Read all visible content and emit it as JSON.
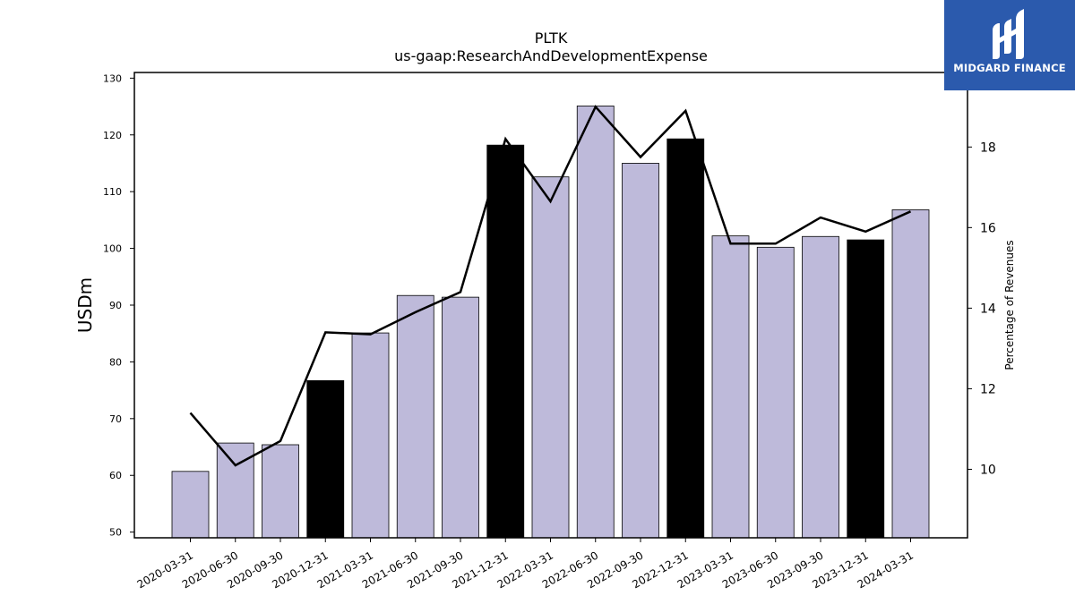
{
  "brand": {
    "name": "MIDGARD FINANCE",
    "background_color": "#2b5aad",
    "icon": "midgard-logo-icon"
  },
  "chart_data": {
    "type": "bar",
    "title": "PLTK",
    "subtitle": "us-gaap:ResearchAndDevelopmentExpense",
    "ylabel": "USDm",
    "y2label": "Percentage of Revenues",
    "ylim": [
      49,
      131
    ],
    "y2lim": [
      8.3,
      19.85
    ],
    "yticks": [
      50,
      60,
      70,
      80,
      90,
      100,
      110,
      120,
      130
    ],
    "y2ticks": [
      10,
      12,
      14,
      16,
      18
    ],
    "categories": [
      "2020-03-31",
      "2020-06-30",
      "2020-09-30",
      "2020-12-31",
      "2021-03-31",
      "2021-06-30",
      "2021-09-30",
      "2021-12-31",
      "2022-03-31",
      "2022-06-30",
      "2022-09-30",
      "2022-12-31",
      "2023-03-31",
      "2023-06-30",
      "2023-09-30",
      "2023-12-31",
      "2024-03-31"
    ],
    "series": [
      {
        "kind": "bar",
        "values": [
          60.7,
          65.7,
          65.4,
          76.7,
          85.1,
          91.7,
          91.4,
          118.2,
          112.6,
          125.1,
          115.0,
          119.3,
          102.2,
          100.2,
          102.1,
          101.5,
          106.8
        ],
        "highlight": [
          false,
          false,
          false,
          true,
          false,
          false,
          false,
          true,
          false,
          false,
          false,
          true,
          false,
          false,
          false,
          true,
          false
        ],
        "color": "#bebada",
        "highlight_color": "#000000"
      },
      {
        "kind": "line",
        "axis": "right",
        "values": [
          11.4,
          10.1,
          10.7,
          13.4,
          13.35,
          13.9,
          14.4,
          18.2,
          16.65,
          19.0,
          17.75,
          18.9,
          15.6,
          15.6,
          16.25,
          15.9,
          16.4
        ],
        "color": "#000000"
      }
    ],
    "grid": false,
    "legend": "none"
  }
}
